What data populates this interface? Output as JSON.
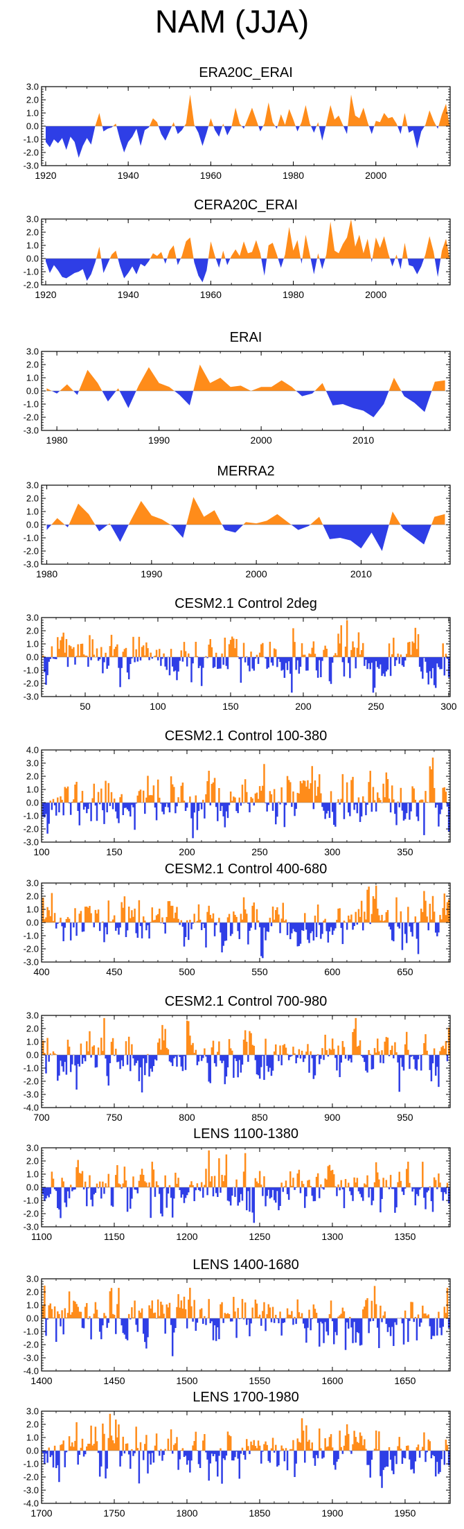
{
  "page": {
    "title": "NAM (JJA)"
  },
  "colors": {
    "positive": "#ff8c1a",
    "negative": "#2e3ee6",
    "axis": "#000000"
  },
  "chart_data": [
    {
      "type": "area",
      "title": "ERA20C_ERAI",
      "xlim": [
        1919,
        2018
      ],
      "ylim": [
        -3.0,
        3.0
      ],
      "yticks": [
        "3.0",
        "2.0",
        "1.0",
        "0.0",
        "-1.0",
        "-2.0",
        "-3.0"
      ],
      "xticks": [
        1920,
        1940,
        1960,
        1980,
        2000
      ],
      "keys": [
        [
          1920,
          -1.2
        ],
        [
          1921,
          -1.6
        ],
        [
          1922,
          -1.0
        ],
        [
          1923,
          -1.3
        ],
        [
          1924,
          -0.9
        ],
        [
          1925,
          -1.8
        ],
        [
          1926,
          -0.8
        ],
        [
          1927,
          -1.2
        ],
        [
          1928,
          -2.4
        ],
        [
          1929,
          -1.5
        ],
        [
          1930,
          -0.9
        ],
        [
          1931,
          -1.4
        ],
        [
          1932,
          0.0
        ],
        [
          1933,
          1.0
        ],
        [
          1934,
          -0.4
        ],
        [
          1935,
          -0.2
        ],
        [
          1936,
          -0.1
        ],
        [
          1937,
          0.2
        ],
        [
          1938,
          -1.0
        ],
        [
          1939,
          -2.0
        ],
        [
          1940,
          -1.2
        ],
        [
          1941,
          -0.8
        ],
        [
          1942,
          -0.2
        ],
        [
          1943,
          -1.5
        ],
        [
          1944,
          -0.3
        ],
        [
          1945,
          -0.1
        ],
        [
          1946,
          0.6
        ],
        [
          1947,
          0.3
        ],
        [
          1948,
          -0.6
        ],
        [
          1949,
          -1.1
        ],
        [
          1950,
          -0.4
        ],
        [
          1951,
          0.3
        ],
        [
          1952,
          -0.6
        ],
        [
          1953,
          -0.3
        ],
        [
          1954,
          0.2
        ],
        [
          1955,
          2.4
        ],
        [
          1956,
          0.1
        ],
        [
          1957,
          -0.5
        ],
        [
          1958,
          -1.5
        ],
        [
          1959,
          -0.5
        ],
        [
          1960,
          0.6
        ],
        [
          1961,
          -0.3
        ],
        [
          1962,
          -0.8
        ],
        [
          1963,
          0.2
        ],
        [
          1964,
          -0.7
        ],
        [
          1965,
          -0.1
        ],
        [
          1966,
          1.4
        ],
        [
          1967,
          0.2
        ],
        [
          1968,
          -0.2
        ],
        [
          1969,
          0.6
        ],
        [
          1970,
          1.4
        ],
        [
          1971,
          0.5
        ],
        [
          1972,
          -0.4
        ],
        [
          1973,
          0.2
        ],
        [
          1974,
          1.8
        ],
        [
          1975,
          0.3
        ],
        [
          1976,
          -0.2
        ],
        [
          1977,
          0.9
        ],
        [
          1978,
          0.1
        ],
        [
          1979,
          1.3
        ],
        [
          1980,
          0.5
        ],
        [
          1981,
          -0.4
        ],
        [
          1982,
          0.3
        ],
        [
          1983,
          1.6
        ],
        [
          1984,
          0.2
        ],
        [
          1985,
          -0.5
        ],
        [
          1986,
          0.3
        ],
        [
          1987,
          -1.1
        ],
        [
          1988,
          0.2
        ],
        [
          1989,
          1.6
        ],
        [
          1990,
          0.5
        ],
        [
          1991,
          0.8
        ],
        [
          1992,
          0.1
        ],
        [
          1993,
          -0.6
        ],
        [
          1994,
          2.4
        ],
        [
          1995,
          0.8
        ],
        [
          1996,
          0.6
        ],
        [
          1997,
          1.4
        ],
        [
          1998,
          0.3
        ],
        [
          1999,
          -0.6
        ],
        [
          2000,
          0.4
        ],
        [
          2001,
          0.3
        ],
        [
          2002,
          1.0
        ],
        [
          2003,
          0.6
        ],
        [
          2004,
          0.7
        ],
        [
          2005,
          0.2
        ],
        [
          2006,
          -0.6
        ],
        [
          2007,
          1.0
        ],
        [
          2008,
          -0.5
        ],
        [
          2009,
          -0.3
        ],
        [
          2010,
          -1.7
        ],
        [
          2011,
          -0.4
        ],
        [
          2012,
          0.1
        ],
        [
          2013,
          1.2
        ],
        [
          2014,
          0.4
        ],
        [
          2015,
          -0.2
        ],
        [
          2016,
          0.9
        ],
        [
          2017,
          1.7
        ],
        [
          2018,
          -0.2
        ],
        [
          2019,
          2.2
        ]
      ]
    },
    {
      "type": "area",
      "title": "CERA20C_ERAI",
      "xlim": [
        1919,
        2018
      ],
      "ylim": [
        -2.0,
        3.0
      ],
      "yticks": [
        "3.0",
        "2.0",
        "1.0",
        "0.0",
        "-1.0",
        "-2.0"
      ],
      "xticks": [
        1920,
        1940,
        1960,
        1980,
        2000
      ],
      "keys": [
        [
          1920,
          -0.2
        ],
        [
          1921,
          -1.1
        ],
        [
          1922,
          -0.5
        ],
        [
          1923,
          -0.9
        ],
        [
          1924,
          -1.4
        ],
        [
          1925,
          -1.5
        ],
        [
          1926,
          -1.3
        ],
        [
          1927,
          -1.1
        ],
        [
          1928,
          -1.0
        ],
        [
          1929,
          -0.8
        ],
        [
          1930,
          -1.7
        ],
        [
          1931,
          -1.2
        ],
        [
          1932,
          -0.3
        ],
        [
          1933,
          0.9
        ],
        [
          1934,
          -1.1
        ],
        [
          1935,
          -0.4
        ],
        [
          1936,
          0.3
        ],
        [
          1937,
          0.6
        ],
        [
          1938,
          -0.6
        ],
        [
          1939,
          -1.5
        ],
        [
          1940,
          -1.1
        ],
        [
          1941,
          -0.6
        ],
        [
          1942,
          -1.2
        ],
        [
          1943,
          -0.4
        ],
        [
          1944,
          -0.6
        ],
        [
          1945,
          -0.2
        ],
        [
          1946,
          0.4
        ],
        [
          1947,
          0.2
        ],
        [
          1948,
          0.5
        ],
        [
          1949,
          -0.4
        ],
        [
          1950,
          0.6
        ],
        [
          1951,
          1.0
        ],
        [
          1952,
          -0.5
        ],
        [
          1953,
          0.2
        ],
        [
          1954,
          1.3
        ],
        [
          1955,
          1.6
        ],
        [
          1956,
          -0.3
        ],
        [
          1957,
          -1.3
        ],
        [
          1958,
          -1.8
        ],
        [
          1959,
          -0.9
        ],
        [
          1960,
          1.3
        ],
        [
          1961,
          0.2
        ],
        [
          1962,
          -0.7
        ],
        [
          1963,
          0.6
        ],
        [
          1964,
          -0.5
        ],
        [
          1965,
          0.2
        ],
        [
          1966,
          0.7
        ],
        [
          1967,
          0.2
        ],
        [
          1968,
          1.3
        ],
        [
          1969,
          0.4
        ],
        [
          1970,
          0.5
        ],
        [
          1971,
          1.4
        ],
        [
          1972,
          0.4
        ],
        [
          1973,
          -1.3
        ],
        [
          1974,
          1.0
        ],
        [
          1975,
          1.2
        ],
        [
          1976,
          0.3
        ],
        [
          1977,
          -0.7
        ],
        [
          1978,
          0.3
        ],
        [
          1979,
          2.4
        ],
        [
          1980,
          0.6
        ],
        [
          1981,
          1.4
        ],
        [
          1982,
          -0.4
        ],
        [
          1983,
          1.8
        ],
        [
          1984,
          0.3
        ],
        [
          1985,
          -1.2
        ],
        [
          1986,
          0.4
        ],
        [
          1987,
          -0.8
        ],
        [
          1988,
          0.3
        ],
        [
          1989,
          2.8
        ],
        [
          1990,
          0.6
        ],
        [
          1991,
          0.4
        ],
        [
          1992,
          1.1
        ],
        [
          1993,
          1.6
        ],
        [
          1994,
          3.0
        ],
        [
          1995,
          0.9
        ],
        [
          1996,
          1.8
        ],
        [
          1997,
          0.4
        ],
        [
          1998,
          1.5
        ],
        [
          1999,
          -0.3
        ],
        [
          2000,
          1.6
        ],
        [
          2001,
          0.8
        ],
        [
          2002,
          1.7
        ],
        [
          2003,
          0.4
        ],
        [
          2004,
          -0.6
        ],
        [
          2005,
          0.3
        ],
        [
          2006,
          -0.8
        ],
        [
          2007,
          1.2
        ],
        [
          2008,
          -0.5
        ],
        [
          2009,
          -0.6
        ],
        [
          2010,
          -1.2
        ],
        [
          2011,
          -0.6
        ],
        [
          2012,
          0.3
        ],
        [
          2013,
          1.7
        ],
        [
          2014,
          0.5
        ],
        [
          2015,
          -1.4
        ],
        [
          2016,
          0.6
        ],
        [
          2017,
          1.5
        ],
        [
          2018,
          -0.2
        ],
        [
          2019,
          1.5
        ]
      ]
    },
    {
      "type": "area",
      "title": "ERAI",
      "xlim": [
        1978.5,
        2018.5
      ],
      "ylim": [
        -3.0,
        3.0
      ],
      "yticks": [
        "3.0",
        "2.0",
        "1.0",
        "0.0",
        "-1.0",
        "-2.0",
        "-3.0"
      ],
      "xticks": [
        1980,
        1990,
        2000,
        2010
      ],
      "keys": [
        [
          1979,
          0.2
        ],
        [
          1980,
          -0.2
        ],
        [
          1981,
          0.5
        ],
        [
          1982,
          -0.3
        ],
        [
          1983,
          1.6
        ],
        [
          1984,
          0.6
        ],
        [
          1985,
          -0.8
        ],
        [
          1986,
          0.2
        ],
        [
          1987,
          -1.3
        ],
        [
          1988,
          0.4
        ],
        [
          1989,
          1.8
        ],
        [
          1990,
          0.6
        ],
        [
          1991,
          0.3
        ],
        [
          1992,
          -0.3
        ],
        [
          1993,
          -1.1
        ],
        [
          1994,
          2.0
        ],
        [
          1995,
          0.6
        ],
        [
          1996,
          1.0
        ],
        [
          1997,
          0.3
        ],
        [
          1998,
          0.4
        ],
        [
          1999,
          0.0
        ],
        [
          2000,
          0.3
        ],
        [
          2001,
          0.3
        ],
        [
          2002,
          0.8
        ],
        [
          2003,
          0.3
        ],
        [
          2004,
          -0.4
        ],
        [
          2005,
          -0.2
        ],
        [
          2006,
          0.6
        ],
        [
          2007,
          -1.1
        ],
        [
          2008,
          -1.0
        ],
        [
          2009,
          -1.3
        ],
        [
          2010,
          -1.5
        ],
        [
          2011,
          -2.0
        ],
        [
          2012,
          -1.0
        ],
        [
          2013,
          1.0
        ],
        [
          2014,
          -0.4
        ],
        [
          2015,
          -0.9
        ],
        [
          2016,
          -1.6
        ],
        [
          2017,
          0.7
        ],
        [
          2018,
          0.8
        ]
      ]
    },
    {
      "type": "area",
      "title": "MERRA2",
      "xlim": [
        1979.5,
        2018.5
      ],
      "ylim": [
        -3.0,
        3.0
      ],
      "yticks": [
        "3.0",
        "2.0",
        "1.0",
        "0.0",
        "-1.0",
        "-2.0",
        "-3.0"
      ],
      "xticks": [
        1980,
        1990,
        2000,
        2010
      ],
      "keys": [
        [
          1980,
          -0.4
        ],
        [
          1981,
          0.5
        ],
        [
          1982,
          -0.2
        ],
        [
          1983,
          1.6
        ],
        [
          1984,
          0.8
        ],
        [
          1985,
          -0.5
        ],
        [
          1986,
          0.1
        ],
        [
          1987,
          -1.3
        ],
        [
          1988,
          0.3
        ],
        [
          1989,
          1.8
        ],
        [
          1990,
          0.7
        ],
        [
          1991,
          0.4
        ],
        [
          1992,
          -0.1
        ],
        [
          1993,
          -1.0
        ],
        [
          1994,
          2.1
        ],
        [
          1995,
          0.6
        ],
        [
          1996,
          1.1
        ],
        [
          1997,
          -0.4
        ],
        [
          1998,
          -0.6
        ],
        [
          1999,
          0.2
        ],
        [
          2000,
          0.1
        ],
        [
          2001,
          0.3
        ],
        [
          2002,
          0.8
        ],
        [
          2003,
          0.2
        ],
        [
          2004,
          -0.4
        ],
        [
          2005,
          -0.1
        ],
        [
          2006,
          0.6
        ],
        [
          2007,
          -1.1
        ],
        [
          2008,
          -1.0
        ],
        [
          2009,
          -1.2
        ],
        [
          2010,
          -1.8
        ],
        [
          2011,
          -0.6
        ],
        [
          2012,
          -2.0
        ],
        [
          2013,
          1.0
        ],
        [
          2014,
          -0.3
        ],
        [
          2015,
          -0.9
        ],
        [
          2016,
          -1.5
        ],
        [
          2017,
          0.6
        ],
        [
          2018,
          0.8
        ]
      ]
    },
    {
      "type": "bar",
      "title": "CESM2.1 Control 2deg",
      "xlim": [
        20,
        301
      ],
      "ylim": [
        -3.0,
        3.0
      ],
      "yticks": [
        "3.0",
        "2.0",
        "1.0",
        "0.0",
        "-1.0",
        "-2.0",
        "-3.0"
      ],
      "xticks": [
        50,
        100,
        150,
        200,
        250,
        300
      ],
      "seed": 5,
      "amp": 0.95,
      "start": 21,
      "end": 300
    },
    {
      "type": "bar",
      "title": "CESM2.1 Control 100-380",
      "xlim": [
        100,
        381
      ],
      "ylim": [
        -3.0,
        4.0
      ],
      "yticks": [
        "4.0",
        "3.0",
        "2.0",
        "1.0",
        "0.0",
        "-1.0",
        "-2.0",
        "-3.0"
      ],
      "xticks": [
        100,
        150,
        200,
        250,
        300,
        350
      ],
      "seed": 11,
      "amp": 0.95,
      "start": 101,
      "end": 380
    },
    {
      "type": "bar",
      "title": "CESM2.1 Control 400-680",
      "xlim": [
        400,
        681
      ],
      "ylim": [
        -3.0,
        3.0
      ],
      "yticks": [
        "3.0",
        "2.0",
        "1.0",
        "0.0",
        "-1.0",
        "-2.0",
        "-3.0"
      ],
      "xticks": [
        400,
        450,
        500,
        550,
        600,
        650
      ],
      "seed": 23,
      "amp": 0.95,
      "start": 401,
      "end": 680
    },
    {
      "type": "bar",
      "title": "CESM2.1 Control 700-980",
      "xlim": [
        700,
        981
      ],
      "ylim": [
        -4.0,
        3.0
      ],
      "yticks": [
        "3.0",
        "2.0",
        "1.0",
        "0.0",
        "-1.0",
        "-2.0",
        "-3.0",
        "-4.0"
      ],
      "xticks": [
        700,
        750,
        800,
        850,
        900,
        950
      ],
      "seed": 37,
      "amp": 0.95,
      "start": 701,
      "end": 980
    },
    {
      "type": "bar",
      "title": "LENS 1100-1380",
      "xlim": [
        1100,
        1381
      ],
      "ylim": [
        -3.0,
        3.0
      ],
      "yticks": [
        "3.0",
        "2.0",
        "1.0",
        "0.0",
        "-1.0",
        "-2.0",
        "-3.0"
      ],
      "xticks": [
        1100,
        1150,
        1200,
        1250,
        1300,
        1350
      ],
      "seed": 41,
      "amp": 0.95,
      "start": 1101,
      "end": 1380
    },
    {
      "type": "bar",
      "title": "LENS 1400-1680",
      "xlim": [
        1400,
        1681
      ],
      "ylim": [
        -4.0,
        3.0
      ],
      "yticks": [
        "3.0",
        "2.0",
        "1.0",
        "0.0",
        "-1.0",
        "-2.0",
        "-3.0",
        "-4.0"
      ],
      "xticks": [
        1400,
        1450,
        1500,
        1550,
        1600,
        1650
      ],
      "seed": 53,
      "amp": 0.95,
      "start": 1401,
      "end": 1680
    },
    {
      "type": "bar",
      "title": "LENS 1700-1980",
      "xlim": [
        1700,
        1981
      ],
      "ylim": [
        -4.0,
        3.0
      ],
      "yticks": [
        "3.0",
        "2.0",
        "1.0",
        "0.0",
        "-1.0",
        "-2.0",
        "-3.0",
        "-4.0"
      ],
      "xticks": [
        1700,
        1750,
        1800,
        1850,
        1900,
        1950
      ],
      "seed": 67,
      "amp": 0.95,
      "start": 1701,
      "end": 1980
    }
  ]
}
